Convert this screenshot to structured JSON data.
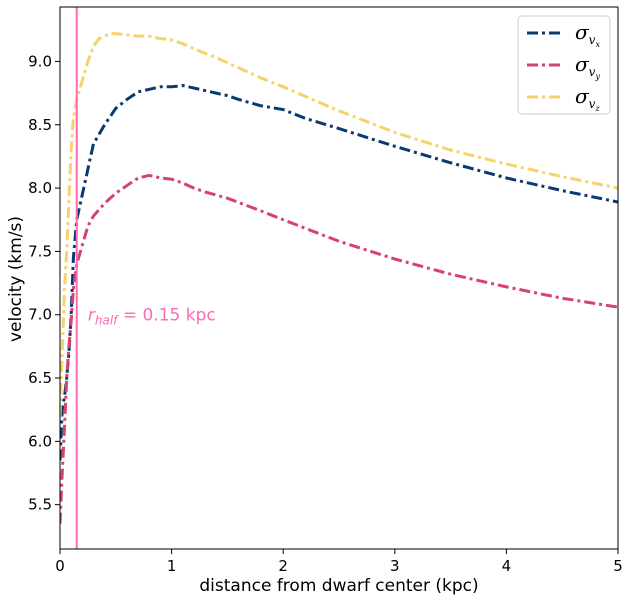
{
  "chart_data": {
    "type": "line",
    "xlabel": "distance from dwarf center (kpc)",
    "ylabel": "velocity (km/s)",
    "xlim": [
      0,
      5
    ],
    "ylim": [
      5.15,
      9.43
    ],
    "xticks": [
      0,
      1,
      2,
      3,
      4,
      5
    ],
    "xtick_labels": [
      "0",
      "1",
      "2",
      "3",
      "4",
      "5"
    ],
    "yticks": [
      5.5,
      6.0,
      6.5,
      7.0,
      7.5,
      8.0,
      8.5,
      9.0
    ],
    "ytick_labels": [
      "5.5",
      "6.0",
      "6.5",
      "7.0",
      "7.5",
      "8.0",
      "8.5",
      "9.0"
    ],
    "grid": false,
    "legend_position": "top-right",
    "series": [
      {
        "name": "σvx",
        "legend_main": "σ",
        "legend_sub": "v",
        "legend_subsub": "x",
        "color": "#0b3a6e",
        "linestyle": "dashdot",
        "x": [
          0.0,
          0.02,
          0.04,
          0.06,
          0.08,
          0.1,
          0.12,
          0.15,
          0.2,
          0.25,
          0.3,
          0.4,
          0.5,
          0.6,
          0.7,
          0.8,
          0.9,
          1.0,
          1.1,
          1.2,
          1.3,
          1.4,
          1.5,
          1.6,
          1.8,
          2.0,
          2.2,
          2.5,
          3.0,
          3.5,
          4.0,
          4.5,
          5.0
        ],
        "y": [
          5.85,
          6.25,
          6.35,
          6.5,
          6.7,
          7.0,
          7.45,
          7.75,
          7.95,
          8.15,
          8.35,
          8.5,
          8.63,
          8.7,
          8.76,
          8.78,
          8.8,
          8.8,
          8.81,
          8.79,
          8.77,
          8.75,
          8.73,
          8.7,
          8.65,
          8.62,
          8.55,
          8.47,
          8.33,
          8.2,
          8.08,
          7.98,
          7.89
        ]
      },
      {
        "name": "σvy",
        "legend_main": "σ",
        "legend_sub": "v",
        "legend_subsub": "y",
        "color": "#d6436c",
        "linestyle": "dashdot",
        "x": [
          0.0,
          0.02,
          0.04,
          0.06,
          0.08,
          0.1,
          0.12,
          0.15,
          0.2,
          0.25,
          0.3,
          0.4,
          0.5,
          0.6,
          0.7,
          0.8,
          0.9,
          1.0,
          1.1,
          1.2,
          1.3,
          1.5,
          1.8,
          2.0,
          2.5,
          3.0,
          3.5,
          4.0,
          4.5,
          5.0
        ],
        "y": [
          5.35,
          5.75,
          6.1,
          6.5,
          6.75,
          6.95,
          7.2,
          7.4,
          7.55,
          7.7,
          7.78,
          7.88,
          7.96,
          8.02,
          8.08,
          8.1,
          8.08,
          8.07,
          8.04,
          8.0,
          7.97,
          7.92,
          7.82,
          7.75,
          7.58,
          7.44,
          7.32,
          7.22,
          7.13,
          7.06
        ]
      },
      {
        "name": "σvz",
        "legend_main": "σ",
        "legend_sub": "v",
        "legend_subsub": "z",
        "color": "#f5d36a",
        "linestyle": "dashdot",
        "x": [
          0.0,
          0.02,
          0.04,
          0.06,
          0.08,
          0.1,
          0.12,
          0.15,
          0.2,
          0.25,
          0.3,
          0.35,
          0.4,
          0.45,
          0.5,
          0.6,
          0.7,
          0.8,
          0.9,
          1.0,
          1.1,
          1.2,
          1.4,
          1.6,
          1.8,
          2.0,
          2.5,
          3.0,
          3.5,
          4.0,
          4.5,
          5.0
        ],
        "y": [
          6.2,
          6.7,
          7.2,
          7.5,
          7.9,
          8.3,
          8.55,
          8.7,
          8.85,
          9.0,
          9.12,
          9.18,
          9.2,
          9.22,
          9.22,
          9.21,
          9.2,
          9.2,
          9.18,
          9.17,
          9.14,
          9.1,
          9.03,
          8.95,
          8.87,
          8.8,
          8.61,
          8.44,
          8.3,
          8.19,
          8.09,
          8.0
        ]
      }
    ],
    "vline": {
      "x": 0.15,
      "color": "#ff69b4"
    },
    "annotation": {
      "x": 0.25,
      "y": 7.0,
      "main": "r",
      "sub": "half",
      "rest": " = 0.15 kpc",
      "color": "#ff69b4"
    }
  }
}
